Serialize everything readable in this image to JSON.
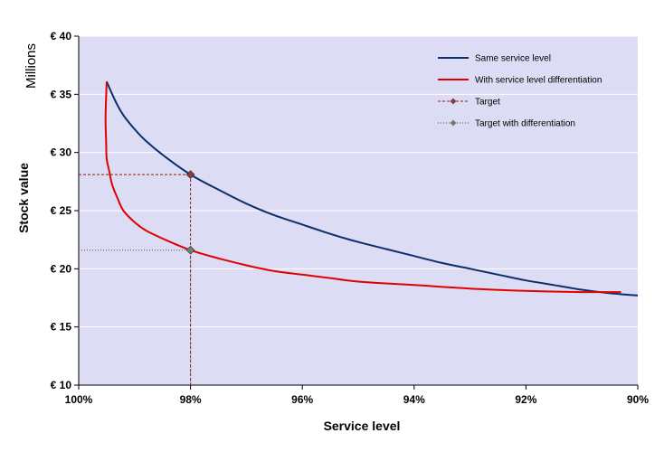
{
  "chart_data": {
    "type": "line",
    "xlabel": "Service level",
    "ylabel": "Stock value",
    "y_units_label": "Millions",
    "x_axis_reversed": true,
    "xlim": [
      1.0,
      0.9
    ],
    "ylim": [
      10,
      40
    ],
    "x_ticks": [
      1.0,
      0.98,
      0.96,
      0.94,
      0.92,
      0.9
    ],
    "x_tick_labels": [
      "100%",
      "98%",
      "96%",
      "94%",
      "92%",
      "90%"
    ],
    "y_ticks": [
      10,
      15,
      20,
      25,
      30,
      35,
      40
    ],
    "y_tick_labels": [
      "€ 10",
      "€ 15",
      "€ 20",
      "€ 25",
      "€ 30",
      "€ 35",
      "€ 40"
    ],
    "grid": "horizontal",
    "legend_position": "top-right",
    "plot_background": "#dcdcf5",
    "series": [
      {
        "name": "Same service level",
        "color": "#0b2f6a",
        "style": "solid",
        "x": [
          0.995,
          0.994,
          0.993,
          0.992,
          0.99,
          0.988,
          0.985,
          0.98,
          0.975,
          0.97,
          0.965,
          0.96,
          0.955,
          0.95,
          0.945,
          0.94,
          0.935,
          0.93,
          0.925,
          0.92,
          0.915,
          0.91,
          0.905,
          0.9
        ],
        "y": [
          36.1,
          35.0,
          34.0,
          33.2,
          32.0,
          31.0,
          29.8,
          28.1,
          26.8,
          25.6,
          24.6,
          23.8,
          23.0,
          22.3,
          21.7,
          21.1,
          20.5,
          20.0,
          19.5,
          19.0,
          18.6,
          18.2,
          17.9,
          17.7
        ]
      },
      {
        "name": "With service level differentiation",
        "color": "#e00000",
        "style": "solid",
        "x": [
          0.995,
          0.9952,
          0.9951,
          0.995,
          0.9945,
          0.994,
          0.993,
          0.992,
          0.99,
          0.988,
          0.985,
          0.98,
          0.975,
          0.97,
          0.965,
          0.96,
          0.955,
          0.95,
          0.94,
          0.93,
          0.92,
          0.91,
          0.903
        ],
        "y": [
          36.1,
          33.0,
          31.0,
          29.5,
          28.3,
          27.2,
          26.0,
          25.0,
          24.0,
          23.3,
          22.6,
          21.6,
          20.9,
          20.3,
          19.8,
          19.5,
          19.2,
          18.9,
          18.6,
          18.3,
          18.1,
          18.0,
          18.0
        ]
      },
      {
        "name": "Target",
        "color": "#8b1a1a",
        "marker_color": "#8b3a3a",
        "style": "dashed",
        "point": {
          "x": 0.98,
          "y": 28.1
        }
      },
      {
        "name": "Target with differentiation",
        "color": "#555555",
        "marker_color": "#6e7f6e",
        "style": "dotted",
        "point": {
          "x": 0.98,
          "y": 21.6
        }
      }
    ]
  }
}
